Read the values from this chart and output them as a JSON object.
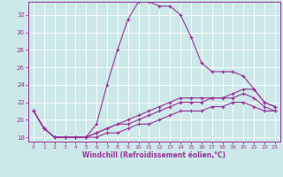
{
  "xlabel": "Windchill (Refroidissement éolien,°C)",
  "bg_color": "#cce8e8",
  "grid_color": "#aacccc",
  "line_color": "#993399",
  "xlim": [
    -0.5,
    23.5
  ],
  "ylim": [
    17.5,
    33.5
  ],
  "yticks": [
    18,
    20,
    22,
    24,
    26,
    28,
    30,
    32
  ],
  "xticks": [
    0,
    1,
    2,
    3,
    4,
    5,
    6,
    7,
    8,
    9,
    10,
    11,
    12,
    13,
    14,
    15,
    16,
    17,
    18,
    19,
    20,
    21,
    22,
    23
  ],
  "series": [
    [
      21.0,
      19.0,
      18.0,
      18.0,
      18.0,
      18.0,
      19.5,
      24.0,
      28.0,
      31.5,
      33.5,
      33.5,
      33.0,
      33.0,
      32.0,
      29.5,
      26.5,
      25.5,
      25.5,
      25.5,
      25.0,
      23.5,
      22.0,
      21.5
    ],
    [
      21.0,
      19.0,
      18.0,
      18.0,
      18.0,
      18.0,
      18.5,
      19.0,
      19.5,
      20.0,
      20.5,
      21.0,
      21.5,
      22.0,
      22.5,
      22.5,
      22.5,
      22.5,
      22.5,
      23.0,
      23.5,
      23.5,
      22.0,
      21.5
    ],
    [
      21.0,
      19.0,
      18.0,
      18.0,
      18.0,
      18.0,
      18.5,
      19.0,
      19.5,
      19.5,
      20.0,
      20.5,
      21.0,
      21.5,
      22.0,
      22.0,
      22.0,
      22.5,
      22.5,
      22.5,
      23.0,
      22.5,
      21.5,
      21.0
    ],
    [
      21.0,
      19.0,
      18.0,
      18.0,
      18.0,
      18.0,
      18.0,
      18.5,
      18.5,
      19.0,
      19.5,
      19.5,
      20.0,
      20.5,
      21.0,
      21.0,
      21.0,
      21.5,
      21.5,
      22.0,
      22.0,
      21.5,
      21.0,
      21.0
    ]
  ]
}
